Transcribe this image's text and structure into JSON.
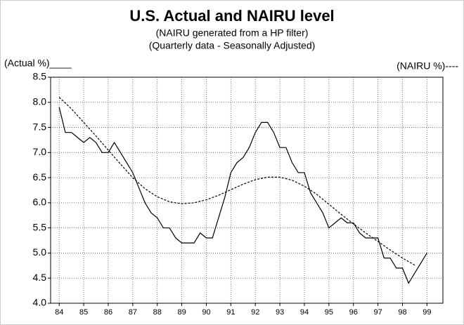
{
  "chart_data": {
    "type": "line",
    "title": "U.S. Actual and NAIRU level",
    "subtitle": [
      "(NAIRU generated from a HP filter)",
      "(Quarterly data - Seasonally Adjusted)"
    ],
    "y_label_left": "(Actual %)____",
    "y_label_right": "(NAIRU %)----",
    "xlim": [
      83.65,
      99.65
    ],
    "xticks": [
      84,
      85,
      86,
      87,
      88,
      89,
      90,
      91,
      92,
      93,
      94,
      95,
      96,
      97,
      98,
      99
    ],
    "ylim": [
      4.0,
      8.5
    ],
    "yticks": [
      {
        "value": 4,
        "label": "4.0"
      },
      4.5,
      {
        "value": 5,
        "label": "5.0"
      },
      5.5,
      {
        "value": 6,
        "label": "6.0"
      },
      6.5,
      {
        "value": 7,
        "label": "7.0"
      },
      7.5,
      {
        "value": 8,
        "label": "8.0"
      },
      8.5
    ],
    "grid": true,
    "series": [
      {
        "name": "Actual",
        "color": "#000000",
        "dash": false,
        "x": [
          84,
          84.25,
          84.5,
          84.75,
          85,
          85.25,
          85.5,
          85.75,
          86,
          86.25,
          86.5,
          86.75,
          87,
          87.25,
          87.5,
          87.75,
          88,
          88.25,
          88.5,
          88.75,
          89,
          89.25,
          89.5,
          89.75,
          90,
          90.25,
          90.5,
          90.75,
          91,
          91.25,
          91.5,
          91.75,
          92,
          92.25,
          92.5,
          92.75,
          93,
          93.25,
          93.5,
          93.75,
          94,
          94.25,
          94.5,
          94.75,
          95,
          95.25,
          95.5,
          95.75,
          96,
          96.25,
          96.5,
          96.75,
          97,
          97.25,
          97.5,
          97.75,
          98,
          98.25,
          98.5,
          98.75,
          99
        ],
        "values": [
          7.9,
          7.4,
          7.4,
          7.3,
          7.2,
          7.3,
          7.2,
          7.0,
          7.0,
          7.2,
          7.0,
          6.8,
          6.6,
          6.3,
          6.0,
          5.8,
          5.7,
          5.5,
          5.5,
          5.3,
          5.2,
          5.2,
          5.2,
          5.4,
          5.3,
          5.3,
          5.7,
          6.1,
          6.6,
          6.8,
          6.9,
          7.1,
          7.4,
          7.6,
          7.6,
          7.4,
          7.1,
          7.1,
          6.8,
          6.6,
          6.6,
          6.2,
          6.0,
          5.8,
          5.5,
          5.6,
          5.7,
          5.6,
          5.6,
          5.4,
          5.3,
          5.3,
          5.3,
          4.9,
          4.9,
          4.7,
          4.7,
          4.4,
          4.6,
          4.8,
          5.0
        ]
      },
      {
        "name": "NAIRU",
        "color": "#000000",
        "dash": true,
        "x": [
          84,
          84.5,
          85,
          85.5,
          86,
          86.5,
          87,
          87.5,
          88,
          88.5,
          89,
          89.5,
          90,
          90.5,
          91,
          91.5,
          92,
          92.5,
          93,
          93.5,
          94,
          94.5,
          95,
          95.5,
          96,
          96.5,
          97,
          97.5,
          98,
          98.5
        ],
        "values": [
          8.1,
          7.87,
          7.6,
          7.33,
          7.05,
          6.77,
          6.5,
          6.28,
          6.12,
          6.02,
          5.98,
          6.0,
          6.06,
          6.15,
          6.26,
          6.37,
          6.46,
          6.51,
          6.51,
          6.45,
          6.33,
          6.17,
          5.97,
          5.77,
          5.58,
          5.4,
          5.23,
          5.06,
          4.9,
          4.76
        ]
      }
    ]
  }
}
